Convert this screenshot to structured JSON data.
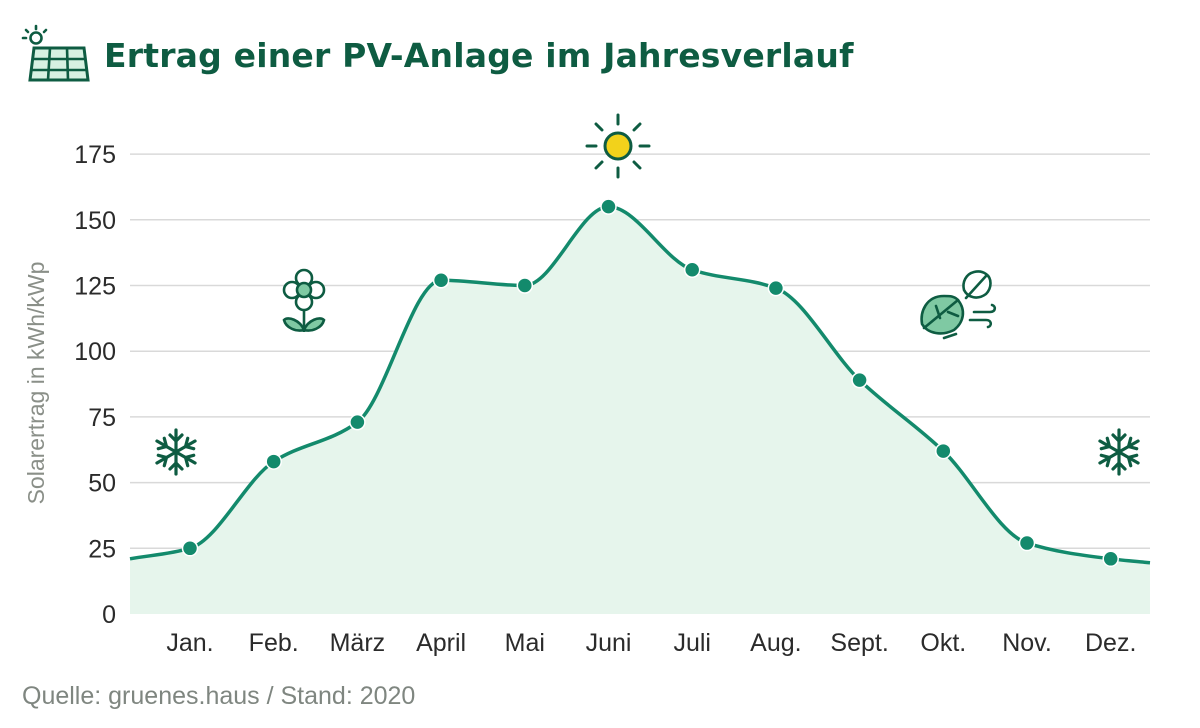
{
  "title": "Ertrag einer PV-Anlage im Jahresverlauf",
  "source": "Quelle: gruenes.haus  /  Stand: 2020",
  "colors": {
    "accent": "#138a6c",
    "fill": "#e6f5ec",
    "title": "#0e5c42",
    "sun": "#f2d21b",
    "grid": "#d9d9d9"
  },
  "icons": [
    "solar-panel-icon",
    "snowflake-icon",
    "flower-icon",
    "sun-icon",
    "leaves-wind-icon"
  ],
  "chart_data": {
    "type": "area",
    "title": "Ertrag einer PV-Anlage im Jahresverlauf",
    "ylabel": "Solarertrag in kWh/kWp",
    "xlabel": "",
    "categories": [
      "Jan.",
      "Feb.",
      "März",
      "April",
      "Mai",
      "Juni",
      "Juli",
      "Aug.",
      "Sept.",
      "Okt.",
      "Nov.",
      "Dez."
    ],
    "values": [
      25,
      58,
      73,
      127,
      125,
      155,
      131,
      124,
      89,
      62,
      27,
      21
    ],
    "ylim": [
      0,
      185
    ],
    "yticks": [
      0,
      25,
      50,
      75,
      100,
      125,
      150,
      175
    ],
    "grid": true,
    "legend": "none"
  }
}
